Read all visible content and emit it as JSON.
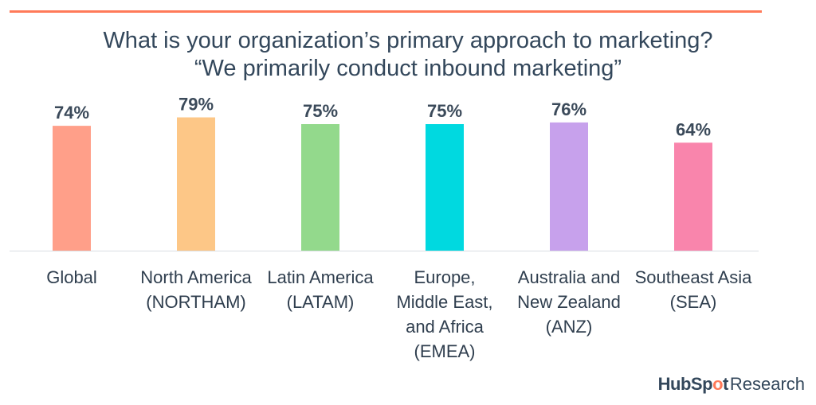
{
  "chart_data": {
    "type": "bar",
    "title": "What is your organization’s primary approach to marketing?",
    "subtitle": "“We primarily conduct inbound marketing”",
    "categories": [
      [
        "Global"
      ],
      [
        "North America",
        "(NORTHAM)"
      ],
      [
        "Latin America",
        "(LATAM)"
      ],
      [
        "Europe,",
        "Middle East,",
        "and Africa",
        "(EMEA)"
      ],
      [
        "Australia and",
        "New Zealand",
        "(ANZ)"
      ],
      [
        "Southeast Asia",
        "(SEA)"
      ]
    ],
    "values": [
      74,
      79,
      75,
      75,
      76,
      64
    ],
    "value_labels": [
      "74%",
      "79%",
      "75%",
      "75%",
      "76%",
      "64%"
    ],
    "colors": [
      "#ff9f89",
      "#fdc787",
      "#93d98c",
      "#00d9e0",
      "#c7a1ec",
      "#f985ac"
    ],
    "ylim": [
      0,
      100
    ],
    "grid": false
  },
  "branding": {
    "logo_brand": "HubSpot",
    "logo_suffix": "Research",
    "accent_color": "#ff7a59"
  }
}
